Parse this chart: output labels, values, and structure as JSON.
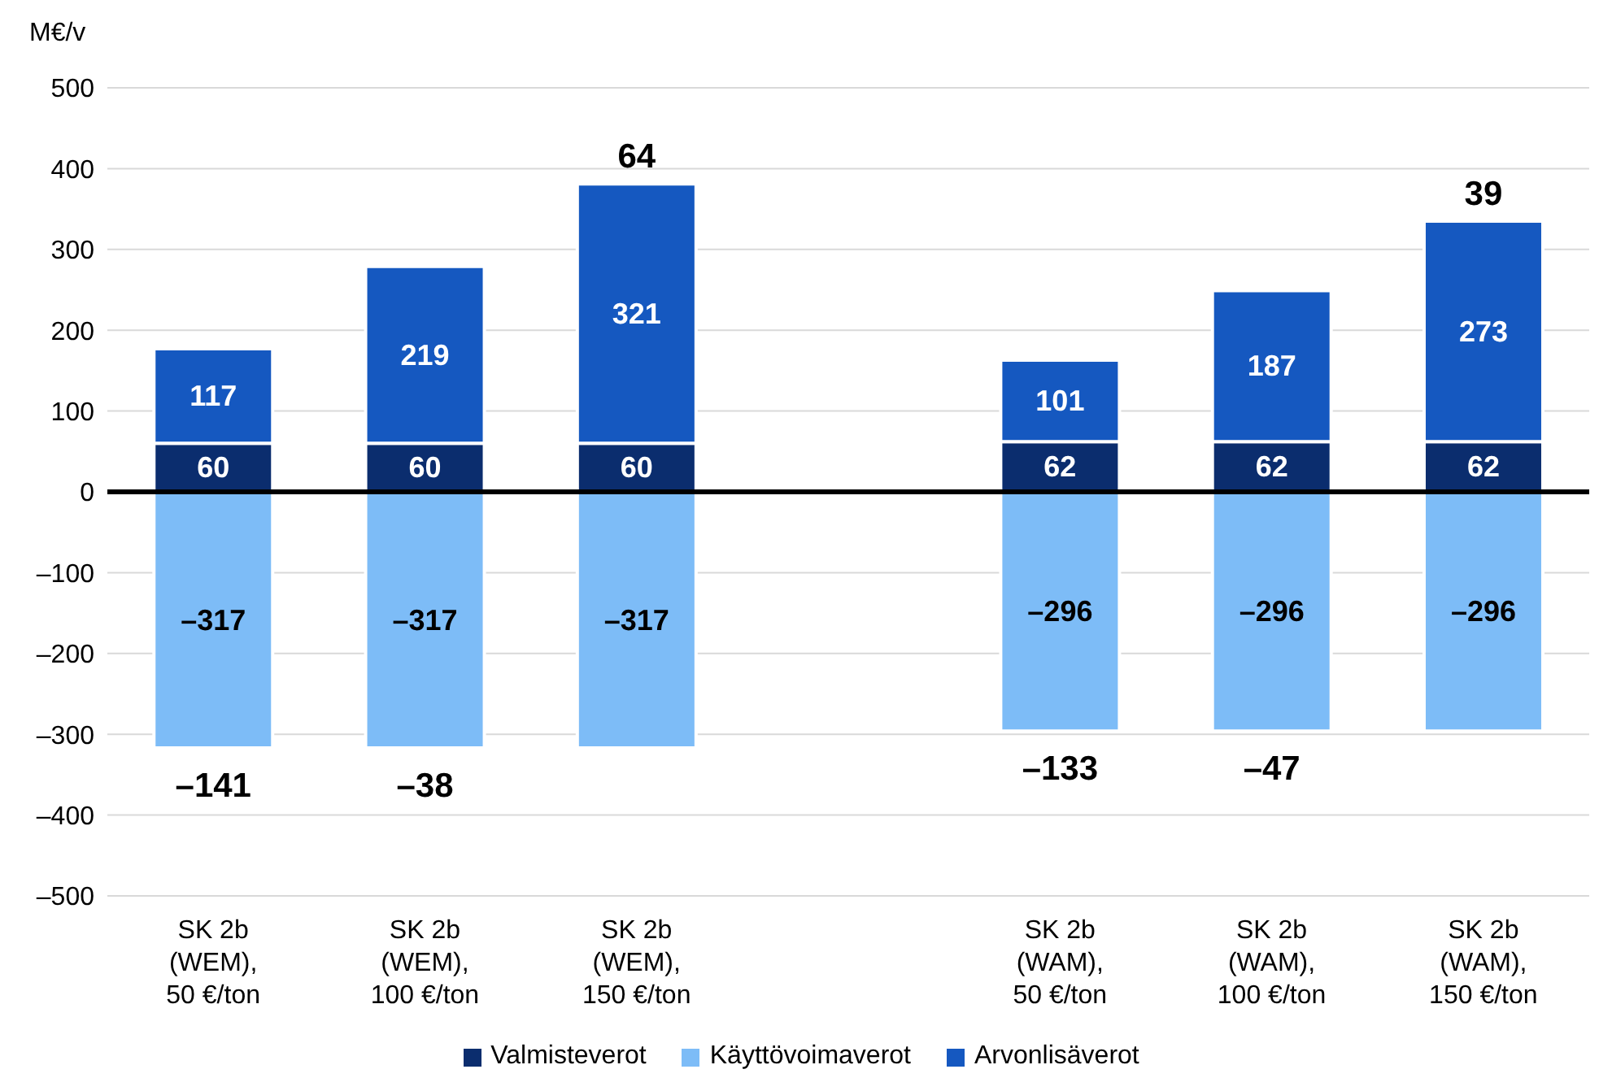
{
  "chart_data": {
    "type": "bar",
    "stacked": true,
    "ylabel": "M€/v",
    "categories": [
      "SK 2b\n(WEM),\n50 €/ton",
      "SK 2b\n(WEM),\n100 €/ton",
      "SK 2b\n(WEM),\n150 €/ton",
      null,
      "SK 2b\n(WAM),\n50 €/ton",
      "SK 2b\n(WAM),\n100 €/ton",
      "SK 2b\n(WAM),\n150 €/ton"
    ],
    "series": [
      {
        "name": "Valmisteverot",
        "color": "#0b2d6e",
        "values": [
          60,
          60,
          60,
          null,
          62,
          62,
          62
        ]
      },
      {
        "name": "Käyttövoimaverot",
        "color": "#7dbcf7",
        "values": [
          -317,
          -317,
          -317,
          null,
          -296,
          -296,
          -296
        ]
      },
      {
        "name": "Arvonlisäverot",
        "color": "#1558c0",
        "values": [
          117,
          219,
          321,
          null,
          101,
          187,
          273
        ]
      }
    ],
    "value_labels": [
      [
        "60",
        "60",
        "60",
        null,
        "62",
        "62",
        "62"
      ],
      [
        "–317",
        "–317",
        "–317",
        null,
        "–296",
        "–296",
        "–296"
      ],
      [
        "117",
        "219",
        "321",
        null,
        "101",
        "187",
        "273"
      ]
    ],
    "totals": [
      "–141",
      "–38",
      "64",
      null,
      "–133",
      "–47",
      "39"
    ],
    "ylim": [
      -500,
      500
    ],
    "yticks": [
      {
        "value": -500,
        "label": "–500"
      },
      {
        "value": -400,
        "label": "–400"
      },
      {
        "value": -300,
        "label": "–300"
      },
      {
        "value": -200,
        "label": "–200"
      },
      {
        "value": -100,
        "label": "–100"
      },
      0,
      100,
      200,
      300,
      400,
      500
    ],
    "ref_lines": [
      {
        "axis": "y",
        "value": 0,
        "color": "#000000"
      }
    ],
    "grid": "y",
    "legend": "bottom"
  }
}
